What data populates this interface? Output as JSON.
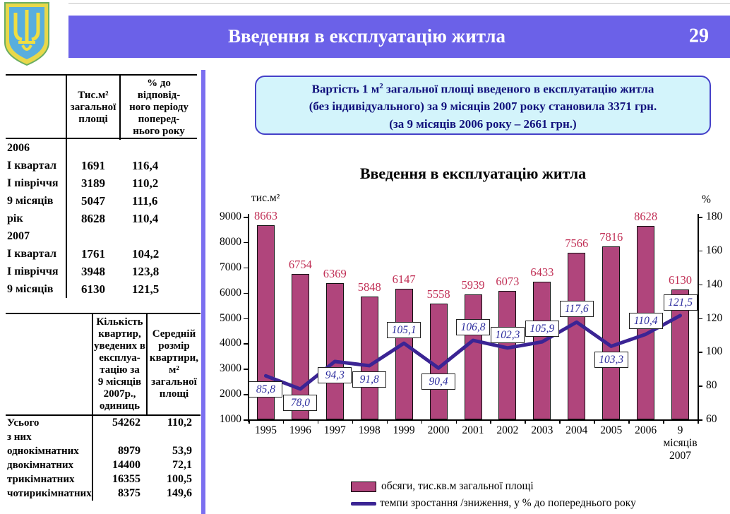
{
  "header": {
    "title": "Введення в експлуатацію житла",
    "page_number": "29"
  },
  "info_box": {
    "line1_pre": "Вартість 1 м",
    "line1_sup": "2",
    "line1_post": " загальної площі введеного в експлуатацію житла",
    "line2": "(без індивідуального) за 9 місяців 2007 року становила 3371 грн.",
    "line3": "(за 9 місяців 2006 року – 2661 грн.)"
  },
  "table1": {
    "headers": [
      "",
      "Тис.м²\nзагальної\nплощі",
      "% до\nвідповід-\nного  періоду\nпоперед-\nнього року"
    ],
    "rows": [
      {
        "label": "2006",
        "v1": "",
        "v2": ""
      },
      {
        "label": "І квартал",
        "v1": "1691",
        "v2": "116,4"
      },
      {
        "label": "І півріччя",
        "v1": "3189",
        "v2": "110,2"
      },
      {
        "label": "9 місяців",
        "v1": "5047",
        "v2": "111,6"
      },
      {
        "label": "рік",
        "v1": "8628",
        "v2": "110,4"
      },
      {
        "label": "2007",
        "v1": "",
        "v2": ""
      },
      {
        "label": "І квартал",
        "v1": "1761",
        "v2": "104,2"
      },
      {
        "label": "І півріччя",
        "v1": "3948",
        "v2": "123,8"
      },
      {
        "label": "9 місяців",
        "v1": "6130",
        "v2": "121,5"
      }
    ]
  },
  "table2": {
    "headers": [
      "",
      "Кількість\nквартир,\nуведених в\nексплуа-\nтацію  за\n9 місяців\n2007р.,\nодиниць",
      "Середній\nрозмір\nквартири,\nм²\nзагальної\nплощі"
    ],
    "rows": [
      {
        "label": "Усього",
        "v1": "54262",
        "v2": "110,2"
      },
      {
        "label": "з них",
        "v1": "",
        "v2": ""
      },
      {
        "label": "однокімнатних",
        "v1": "8979",
        "v2": "53,9"
      },
      {
        "label": "двокімнатних",
        "v1": "14400",
        "v2": "72,1"
      },
      {
        "label": "трикімнатних",
        "v1": "16355",
        "v2": "100,5"
      },
      {
        "label": "чотирикімнатних",
        "v1": "8375",
        "v2": "149,6"
      }
    ]
  },
  "chart_data": {
    "type": "bar+line",
    "title": "Введення в експлуатацію житла",
    "left_axis": {
      "label": "тис.м²",
      "min": 1000,
      "max": 9000,
      "step": 1000,
      "ticks": [
        "9000",
        "8000",
        "7000",
        "6000",
        "5000",
        "4000",
        "3000",
        "2000",
        "1000"
      ]
    },
    "right_axis": {
      "label": "%",
      "min": 60,
      "max": 180,
      "step": 20,
      "ticks": [
        "180",
        "160",
        "140",
        "120",
        "100",
        "80",
        "60"
      ]
    },
    "categories": [
      "1995",
      "1996",
      "1997",
      "1998",
      "1999",
      "2000",
      "2001",
      "2002",
      "2003",
      "2004",
      "2005",
      "2006",
      "9\nмісяців\n2007"
    ],
    "series": [
      {
        "name": "обсяги, тис.кв.м загальної площі",
        "type": "bar",
        "color": "#b0457c",
        "values": [
          8663,
          6754,
          6369,
          5848,
          6147,
          5558,
          5939,
          6073,
          6433,
          7566,
          7816,
          8628,
          6130
        ]
      },
      {
        "name": "темпи зростання /зниження, у % до попереднього року",
        "type": "line",
        "color": "#3b2494",
        "values": [
          85.8,
          78.0,
          94.3,
          91.8,
          105.1,
          90.4,
          106.8,
          102.3,
          105.9,
          117.6,
          103.3,
          110.4,
          121.5
        ],
        "point_labels": [
          "85,8",
          "78,0",
          "94,3",
          "91,8",
          "105,1",
          "90,4",
          "106,8",
          "102,3",
          "105,9",
          "117,6",
          "103,3",
          "110,4",
          "121,5"
        ],
        "label_position": [
          "below",
          "below",
          "below",
          "below",
          "above",
          "below",
          "above",
          "above",
          "above",
          "above",
          "below",
          "above",
          "above"
        ]
      }
    ],
    "legend_position": "bottom",
    "grid": false
  },
  "colors": {
    "titlebar": "#6b61e8",
    "divider": "#7b6ff0",
    "bar": "#b0457c",
    "bar_label": "#c13056",
    "line": "#3b2494",
    "info_border": "#4540c8",
    "info_bg": "#d3f4fb",
    "info_text": "#10107c"
  }
}
